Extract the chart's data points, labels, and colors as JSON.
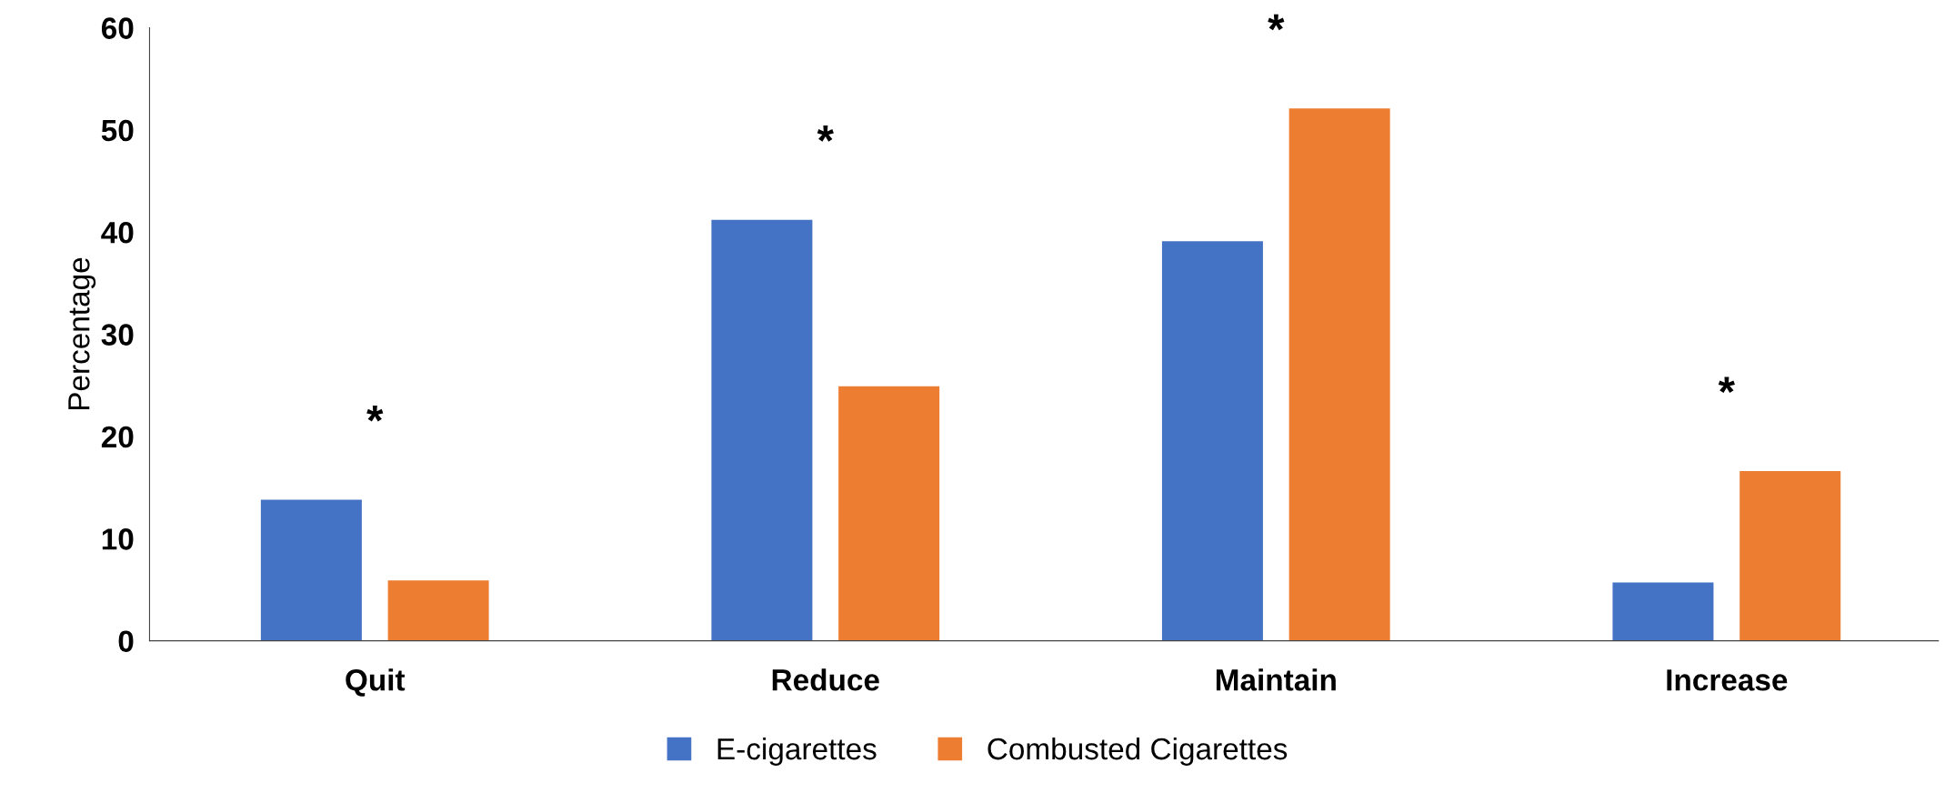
{
  "chart_data": {
    "type": "bar",
    "ylabel": "Percentage",
    "categories": [
      "Quit",
      "Reduce",
      "Maintain",
      "Increase"
    ],
    "series": [
      {
        "name": "E-cigarettes",
        "color": "#4472c4",
        "values": [
          13.8,
          41.2,
          39.1,
          5.7
        ]
      },
      {
        "name": "Combusted Cigarettes",
        "color": "#ed7d31",
        "values": [
          5.9,
          24.9,
          52.1,
          16.6
        ]
      }
    ],
    "ylim": [
      0,
      60
    ],
    "yticks": [
      0,
      10,
      20,
      30,
      40,
      50,
      60
    ],
    "grid": false,
    "legend": "bottom",
    "annotations": [
      "*",
      "*",
      "*",
      "*"
    ]
  }
}
